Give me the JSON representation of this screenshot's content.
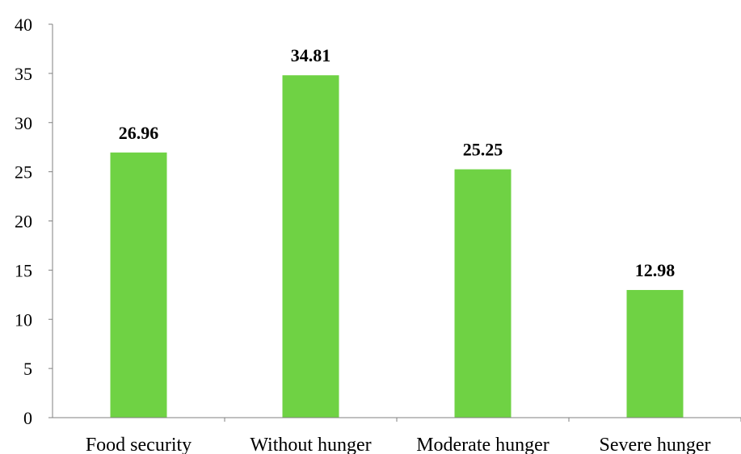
{
  "chart_data": {
    "type": "bar",
    "title": "",
    "xlabel": "",
    "ylabel": "",
    "categories": [
      "Food security",
      "Without hunger",
      "Moderate hunger",
      "Severe hunger"
    ],
    "values": [
      26.96,
      34.81,
      25.25,
      12.98
    ],
    "value_labels": [
      "26.96",
      "34.81",
      "25.25",
      "12.98"
    ],
    "ylim": [
      0,
      40
    ],
    "yticks": [
      0,
      5,
      10,
      15,
      20,
      25,
      30,
      35,
      40
    ],
    "ytick_labels": [
      "0",
      "5",
      "10",
      "15",
      "20",
      "25",
      "30",
      "35",
      "40"
    ],
    "grid": false,
    "legend": "none",
    "bar_color": "#6fd244"
  }
}
